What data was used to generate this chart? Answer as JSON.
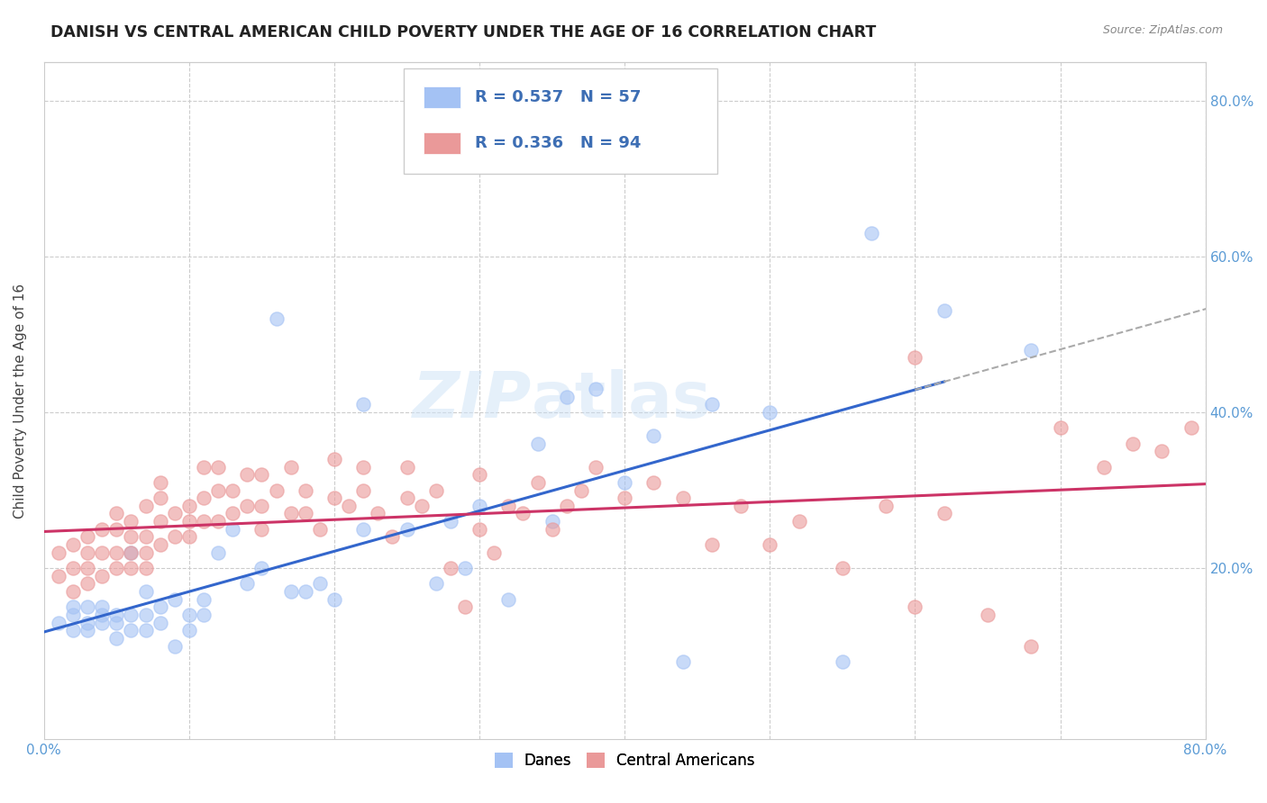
{
  "title": "DANISH VS CENTRAL AMERICAN CHILD POVERTY UNDER THE AGE OF 16 CORRELATION CHART",
  "source": "Source: ZipAtlas.com",
  "ylabel": "Child Poverty Under the Age of 16",
  "xlim": [
    0.0,
    0.8
  ],
  "ylim": [
    -0.02,
    0.85
  ],
  "legend_r_blue": "0.537",
  "legend_n_blue": "57",
  "legend_r_pink": "0.336",
  "legend_n_pink": "94",
  "blue_color": "#a4c2f4",
  "pink_color": "#ea9999",
  "blue_line_color": "#3366cc",
  "pink_line_color": "#cc3366",
  "dashed_line_color": "#aaaaaa",
  "watermark": "ZIPatlas",
  "danes_x": [
    0.01,
    0.02,
    0.02,
    0.02,
    0.03,
    0.03,
    0.03,
    0.04,
    0.04,
    0.04,
    0.05,
    0.05,
    0.05,
    0.06,
    0.06,
    0.06,
    0.07,
    0.07,
    0.07,
    0.08,
    0.08,
    0.09,
    0.09,
    0.1,
    0.1,
    0.11,
    0.11,
    0.12,
    0.13,
    0.14,
    0.15,
    0.16,
    0.17,
    0.18,
    0.19,
    0.2,
    0.22,
    0.22,
    0.25,
    0.27,
    0.28,
    0.29,
    0.3,
    0.32,
    0.34,
    0.35,
    0.36,
    0.38,
    0.4,
    0.42,
    0.44,
    0.46,
    0.55,
    0.57,
    0.62,
    0.68,
    0.5
  ],
  "danes_y": [
    0.13,
    0.12,
    0.14,
    0.15,
    0.12,
    0.13,
    0.15,
    0.13,
    0.14,
    0.15,
    0.11,
    0.13,
    0.14,
    0.12,
    0.14,
    0.22,
    0.12,
    0.14,
    0.17,
    0.13,
    0.15,
    0.1,
    0.16,
    0.12,
    0.14,
    0.14,
    0.16,
    0.22,
    0.25,
    0.18,
    0.2,
    0.52,
    0.17,
    0.17,
    0.18,
    0.16,
    0.25,
    0.41,
    0.25,
    0.18,
    0.26,
    0.2,
    0.28,
    0.16,
    0.36,
    0.26,
    0.42,
    0.43,
    0.31,
    0.37,
    0.08,
    0.41,
    0.08,
    0.63,
    0.53,
    0.48,
    0.4
  ],
  "central_x": [
    0.01,
    0.01,
    0.02,
    0.02,
    0.02,
    0.03,
    0.03,
    0.03,
    0.03,
    0.04,
    0.04,
    0.04,
    0.05,
    0.05,
    0.05,
    0.05,
    0.06,
    0.06,
    0.06,
    0.06,
    0.07,
    0.07,
    0.07,
    0.07,
    0.08,
    0.08,
    0.08,
    0.08,
    0.09,
    0.09,
    0.1,
    0.1,
    0.1,
    0.11,
    0.11,
    0.11,
    0.12,
    0.12,
    0.12,
    0.13,
    0.13,
    0.14,
    0.14,
    0.15,
    0.15,
    0.15,
    0.16,
    0.17,
    0.17,
    0.18,
    0.18,
    0.19,
    0.2,
    0.2,
    0.21,
    0.22,
    0.22,
    0.23,
    0.24,
    0.25,
    0.25,
    0.26,
    0.27,
    0.28,
    0.29,
    0.3,
    0.3,
    0.31,
    0.32,
    0.33,
    0.34,
    0.35,
    0.36,
    0.37,
    0.38,
    0.4,
    0.42,
    0.44,
    0.46,
    0.48,
    0.5,
    0.52,
    0.55,
    0.58,
    0.6,
    0.62,
    0.65,
    0.68,
    0.7,
    0.73,
    0.75,
    0.77,
    0.79,
    0.6
  ],
  "central_y": [
    0.19,
    0.22,
    0.17,
    0.2,
    0.23,
    0.18,
    0.2,
    0.22,
    0.24,
    0.19,
    0.22,
    0.25,
    0.2,
    0.22,
    0.25,
    0.27,
    0.2,
    0.22,
    0.24,
    0.26,
    0.2,
    0.22,
    0.24,
    0.28,
    0.23,
    0.26,
    0.29,
    0.31,
    0.24,
    0.27,
    0.24,
    0.26,
    0.28,
    0.26,
    0.29,
    0.33,
    0.26,
    0.3,
    0.33,
    0.27,
    0.3,
    0.28,
    0.32,
    0.25,
    0.28,
    0.32,
    0.3,
    0.27,
    0.33,
    0.27,
    0.3,
    0.25,
    0.29,
    0.34,
    0.28,
    0.3,
    0.33,
    0.27,
    0.24,
    0.29,
    0.33,
    0.28,
    0.3,
    0.2,
    0.15,
    0.25,
    0.32,
    0.22,
    0.28,
    0.27,
    0.31,
    0.25,
    0.28,
    0.3,
    0.33,
    0.29,
    0.31,
    0.29,
    0.23,
    0.28,
    0.23,
    0.26,
    0.2,
    0.28,
    0.15,
    0.27,
    0.14,
    0.1,
    0.38,
    0.33,
    0.36,
    0.35,
    0.38,
    0.47
  ]
}
